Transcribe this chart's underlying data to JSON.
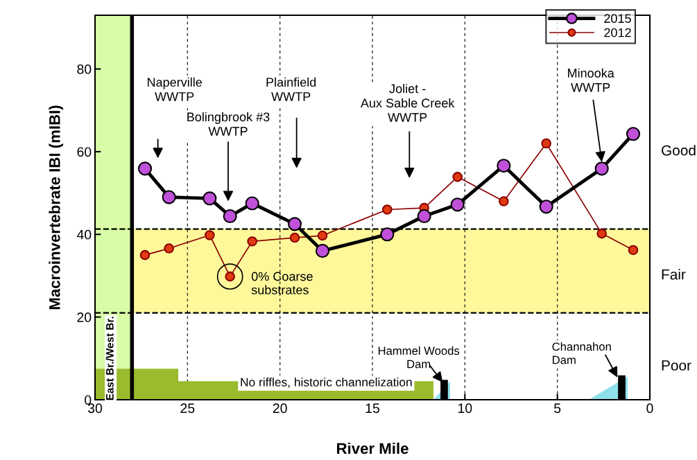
{
  "chart_data": {
    "type": "line",
    "xlabel": "River Mile",
    "ylabel": "Macroinvertebrate IBI (mIBI)",
    "x": [
      27.3,
      26.0,
      23.8,
      22.7,
      21.5,
      19.2,
      17.7,
      14.2,
      12.2,
      10.4,
      7.9,
      5.6,
      2.6,
      0.9
    ],
    "series": [
      {
        "name": "2015",
        "color": "#c050d8",
        "values": [
          55.9,
          49.0,
          48.7,
          44.4,
          47.5,
          42.5,
          36.0,
          40.0,
          44.4,
          47.2,
          56.6,
          46.7,
          55.9,
          64.3
        ]
      },
      {
        "name": "2012",
        "color": "#e03a10",
        "values": [
          35.0,
          36.6,
          39.8,
          29.8,
          38.3,
          39.2,
          39.7,
          46.0,
          46.4,
          53.9,
          48.0,
          62.0,
          40.2,
          36.2
        ]
      }
    ],
    "xlim": [
      30,
      0
    ],
    "xticks": [
      30,
      25,
      20,
      15,
      10,
      5,
      0
    ],
    "ylim": [
      0,
      93
    ],
    "yticks": [
      0,
      20,
      40,
      60,
      80
    ],
    "grid": "x",
    "legend": "top right",
    "marker": "circle",
    "line_style": "solid",
    "bands": [
      {
        "axis": "x",
        "from": 30,
        "to": 28,
        "color": "#d8fca8",
        "label": "East Br./West Br."
      },
      {
        "axis": "y",
        "from": 21,
        "to": 41.3,
        "color": "#fff89a"
      }
    ],
    "ref_lines": [
      {
        "axis": "x",
        "value": 28,
        "color": "#000000",
        "line_style": "solid"
      },
      {
        "axis": "y",
        "value": 21,
        "color": "#000000",
        "line_style": "dashed"
      },
      {
        "axis": "y",
        "value": 41.3,
        "color": "#000000",
        "line_style": "dashed"
      }
    ],
    "annotations": [
      "Naperville\nWWTP",
      "Bolingbrook #3\nWWTP",
      "Plainfield\nWWTP",
      "Joliet -\nAux Sable Creek\nWWTP",
      {
        "text": "Minooka\nWWTP",
        "x": 2.6,
        "y": 57.5
      },
      {
        "text": "0% Coarse\nsubstrates",
        "x": 22.7,
        "y": 29.8
      },
      "Hammel Woods\nDam",
      "Channahon\nDam",
      "No riffles, historic channelization",
      "Good",
      "Fair",
      "Poor"
    ]
  }
}
